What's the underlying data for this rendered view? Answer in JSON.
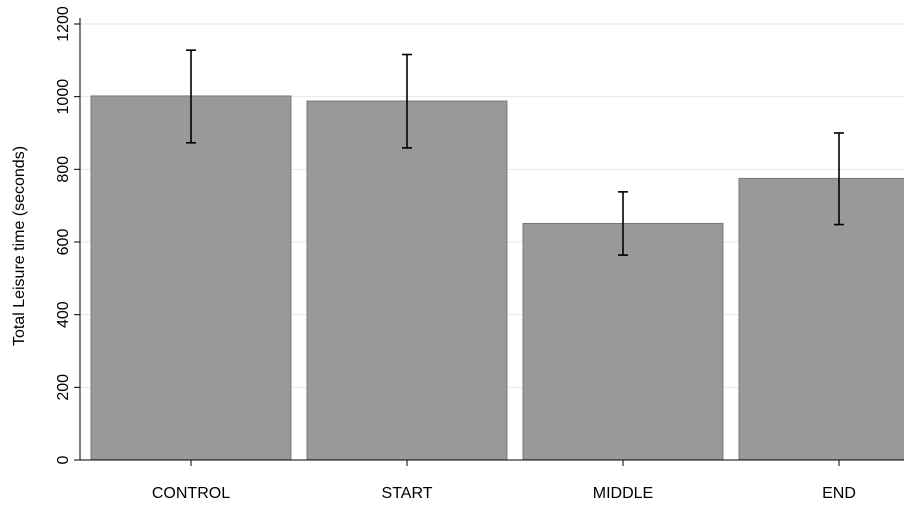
{
  "chart_data": {
    "type": "bar",
    "categories": [
      "CONTROL",
      "START",
      "MIDDLE",
      "END"
    ],
    "values": [
      1002,
      988,
      651,
      775
    ],
    "error_low": [
      873,
      859,
      564,
      648
    ],
    "error_high": [
      1128,
      1116,
      738,
      900
    ],
    "title": "",
    "xlabel": "",
    "ylabel": "Total Leisure time (seconds)",
    "ylim": [
      0,
      1200
    ],
    "yticks": [
      0,
      200,
      400,
      600,
      800,
      1000,
      1200
    ],
    "grid": true,
    "legend": "none",
    "colors": {
      "bar_fill": "#999999",
      "bar_edge": "#7a7a7a",
      "grid": "#e6e6e6",
      "axis": "#000000",
      "errorbar": "#000000"
    }
  }
}
